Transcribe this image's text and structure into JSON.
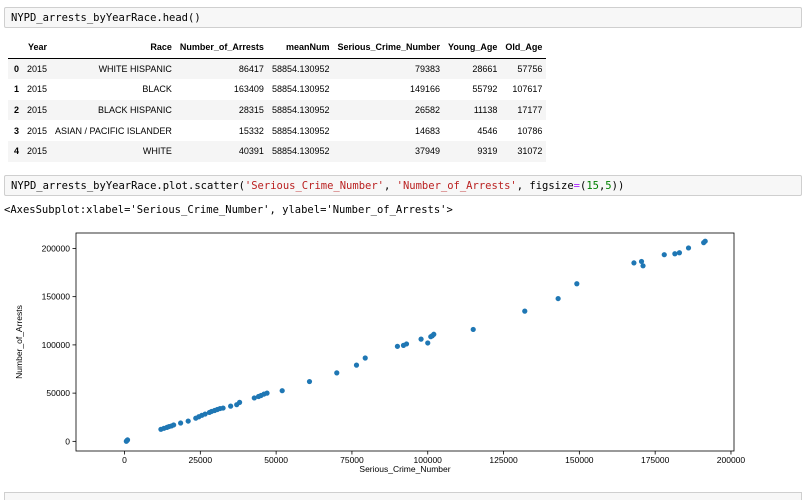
{
  "cell1": {
    "code": "NYPD_arrests_byYearRace.head()"
  },
  "table": {
    "columns": [
      "Year",
      "Race",
      "Number_of_Arrests",
      "meanNum",
      "Serious_Crime_Number",
      "Young_Age",
      "Old_Age"
    ],
    "rows": [
      {
        "index": "0",
        "cells": [
          "2015",
          "WHITE HISPANIC",
          "86417",
          "58854.130952",
          "79383",
          "28661",
          "57756"
        ]
      },
      {
        "index": "1",
        "cells": [
          "2015",
          "BLACK",
          "163409",
          "58854.130952",
          "149166",
          "55792",
          "107617"
        ]
      },
      {
        "index": "2",
        "cells": [
          "2015",
          "BLACK HISPANIC",
          "28315",
          "58854.130952",
          "26582",
          "11138",
          "17177"
        ]
      },
      {
        "index": "3",
        "cells": [
          "2015",
          "ASIAN / PACIFIC ISLANDER",
          "15332",
          "58854.130952",
          "14683",
          "4546",
          "10786"
        ]
      },
      {
        "index": "4",
        "cells": [
          "2015",
          "WHITE",
          "40391",
          "58854.130952",
          "37949",
          "9319",
          "31072"
        ]
      }
    ]
  },
  "cell2": {
    "code_prefix": "NYPD_arrests_byYearRace.plot.scatter(",
    "arg1": "'Serious_Crime_Number'",
    "sep1": ", ",
    "arg2": "'Number_of_Arrests'",
    "sep2": ", figsize",
    "eq": "=",
    "open": "(",
    "num1": "15",
    "comma": ",",
    "num2": "5",
    "close": "))"
  },
  "output_text": "<AxesSubplot:xlabel='Serious_Crime_Number', ylabel='Number_of_Arrests'>",
  "colors": {
    "point": "#1f77b4",
    "cell_bg": "#f7f7f7",
    "string": "#ba2121",
    "number": "#008000"
  },
  "chart_data": {
    "type": "scatter",
    "xlabel": "Serious_Crime_Number",
    "ylabel": "Number_of_Arrests",
    "xlim": [
      -16000,
      201000
    ],
    "ylim": [
      -10000,
      216000
    ],
    "xticks": [
      0,
      25000,
      50000,
      75000,
      100000,
      125000,
      150000,
      175000,
      200000
    ],
    "yticks": [
      0,
      50000,
      100000,
      150000,
      200000
    ],
    "grid": false,
    "x": [
      600,
      800,
      1000,
      12000,
      13000,
      14000,
      14683,
      15500,
      16200,
      18500,
      21000,
      23500,
      24500,
      25500,
      26582,
      28000,
      28700,
      29700,
      30600,
      31500,
      32500,
      35000,
      37000,
      37949,
      42800,
      44200,
      45000,
      46000,
      47000,
      52000,
      61000,
      70000,
      76500,
      79383,
      90000,
      92000,
      93000,
      97800,
      100000,
      101000,
      101500,
      102000,
      115000,
      132000,
      143000,
      149166,
      168000,
      170500,
      171000,
      178000,
      181500,
      183000,
      186000,
      191000,
      191500
    ],
    "y": [
      100,
      800,
      1500,
      12500,
      13500,
      14500,
      15332,
      16000,
      17000,
      19000,
      21000,
      24000,
      25500,
      27000,
      28315,
      30000,
      31000,
      32000,
      33000,
      34000,
      34500,
      36500,
      38000,
      40391,
      45000,
      46500,
      47500,
      49000,
      50000,
      52500,
      62000,
      71000,
      79000,
      86417,
      98500,
      99500,
      101000,
      106000,
      102000,
      108500,
      109500,
      111000,
      116000,
      135000,
      148000,
      163409,
      185000,
      186500,
      182000,
      193500,
      194500,
      195500,
      200500,
      206000,
      207500
    ]
  }
}
